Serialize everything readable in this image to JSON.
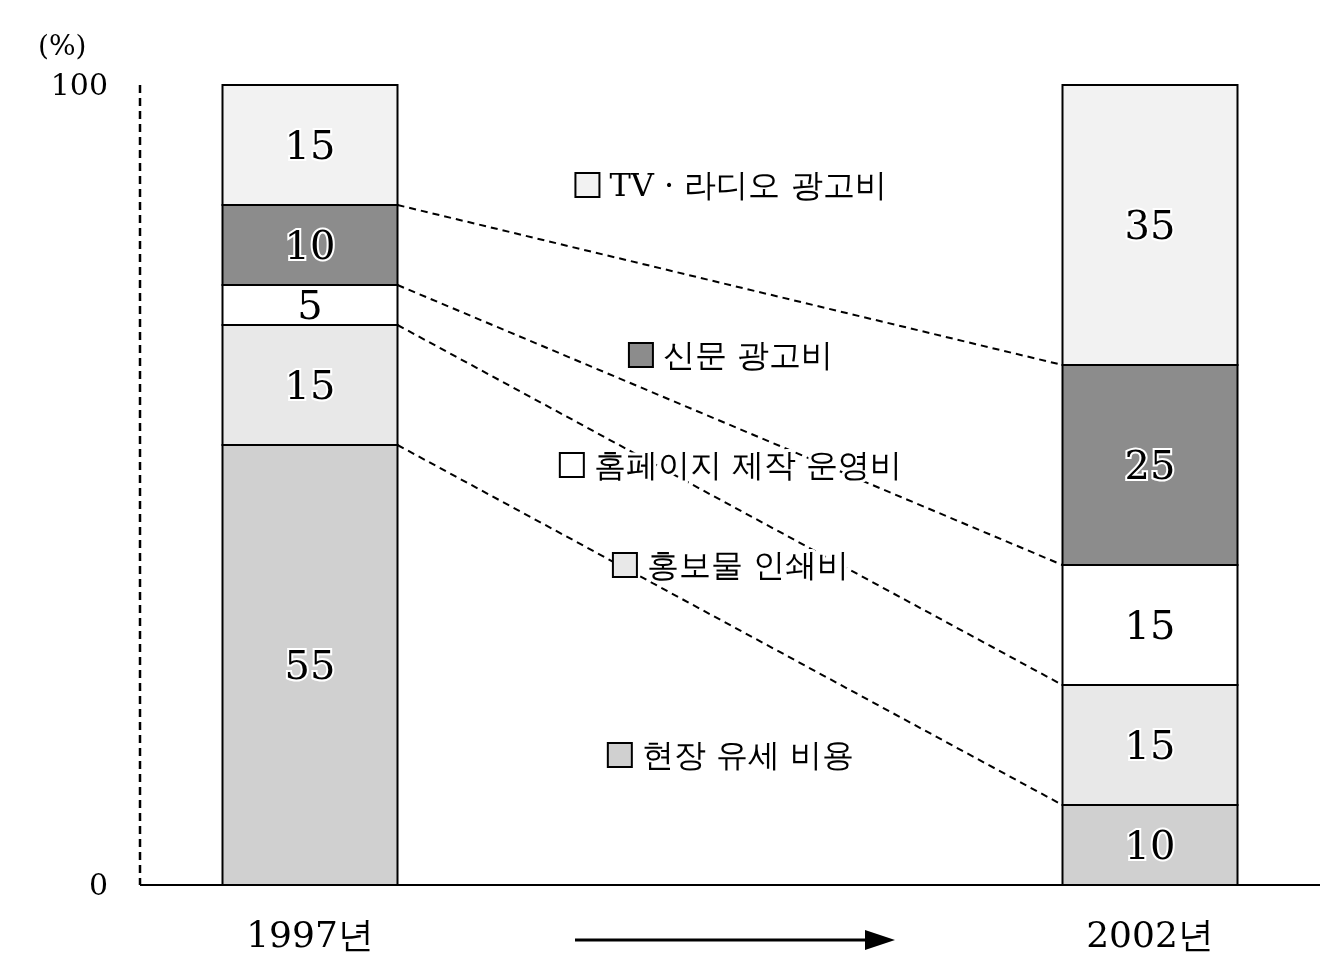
{
  "chart_data": {
    "type": "bar",
    "stacked": true,
    "data_labels": true,
    "legend": "center",
    "ylabel": "(%)",
    "ylim": [
      0,
      100
    ],
    "yticks": [
      0,
      100
    ],
    "categories": [
      "1997년",
      "2002년"
    ],
    "series": [
      {
        "name": "현장 유세 비용",
        "color": "#d0d0d0",
        "values": [
          55,
          10
        ]
      },
      {
        "name": "홍보물 인쇄비",
        "color": "#e8e8e8",
        "values": [
          15,
          15
        ]
      },
      {
        "name": "홈페이지 제작 운영비",
        "color": "#ffffff",
        "values": [
          5,
          15
        ]
      },
      {
        "name": "신문 광고비",
        "color": "#8c8c8c",
        "values": [
          10,
          25
        ]
      },
      {
        "name": "TV · 라디오 광고비",
        "color": "#f2f2f2",
        "values": [
          15,
          35
        ]
      }
    ]
  }
}
